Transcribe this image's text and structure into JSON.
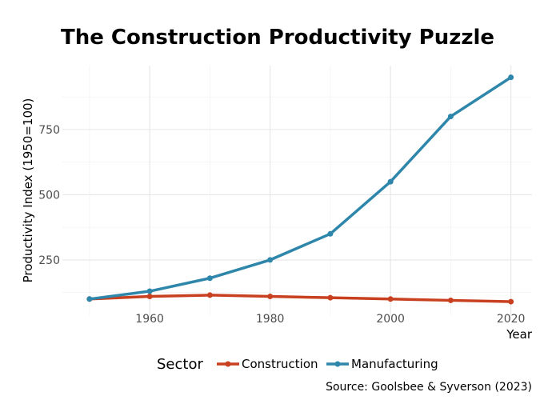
{
  "chart_data": {
    "type": "line",
    "title": "The Construction Productivity Puzzle",
    "xlabel": "Year",
    "ylabel": "Productivity Index (1950=100)",
    "caption": "Source: Goolsbee & Syverson (2023)",
    "x": [
      1950,
      1960,
      1970,
      1980,
      1990,
      2000,
      2010,
      2020
    ],
    "xlim": [
      1945.5,
      2023.5
    ],
    "ylim": [
      35,
      995
    ],
    "xticks": [
      1960,
      1980,
      2000,
      2020
    ],
    "yticks": [
      250,
      500,
      750
    ],
    "grid": true,
    "legend": {
      "title": "Sector",
      "position": "bottom"
    },
    "series": [
      {
        "name": "Construction",
        "color": "#c8401f",
        "values": [
          100,
          110,
          115,
          110,
          105,
          100,
          95,
          90
        ]
      },
      {
        "name": "Manufacturing",
        "color": "#2e86ab",
        "values": [
          100,
          130,
          180,
          250,
          350,
          550,
          800,
          950
        ]
      }
    ]
  }
}
